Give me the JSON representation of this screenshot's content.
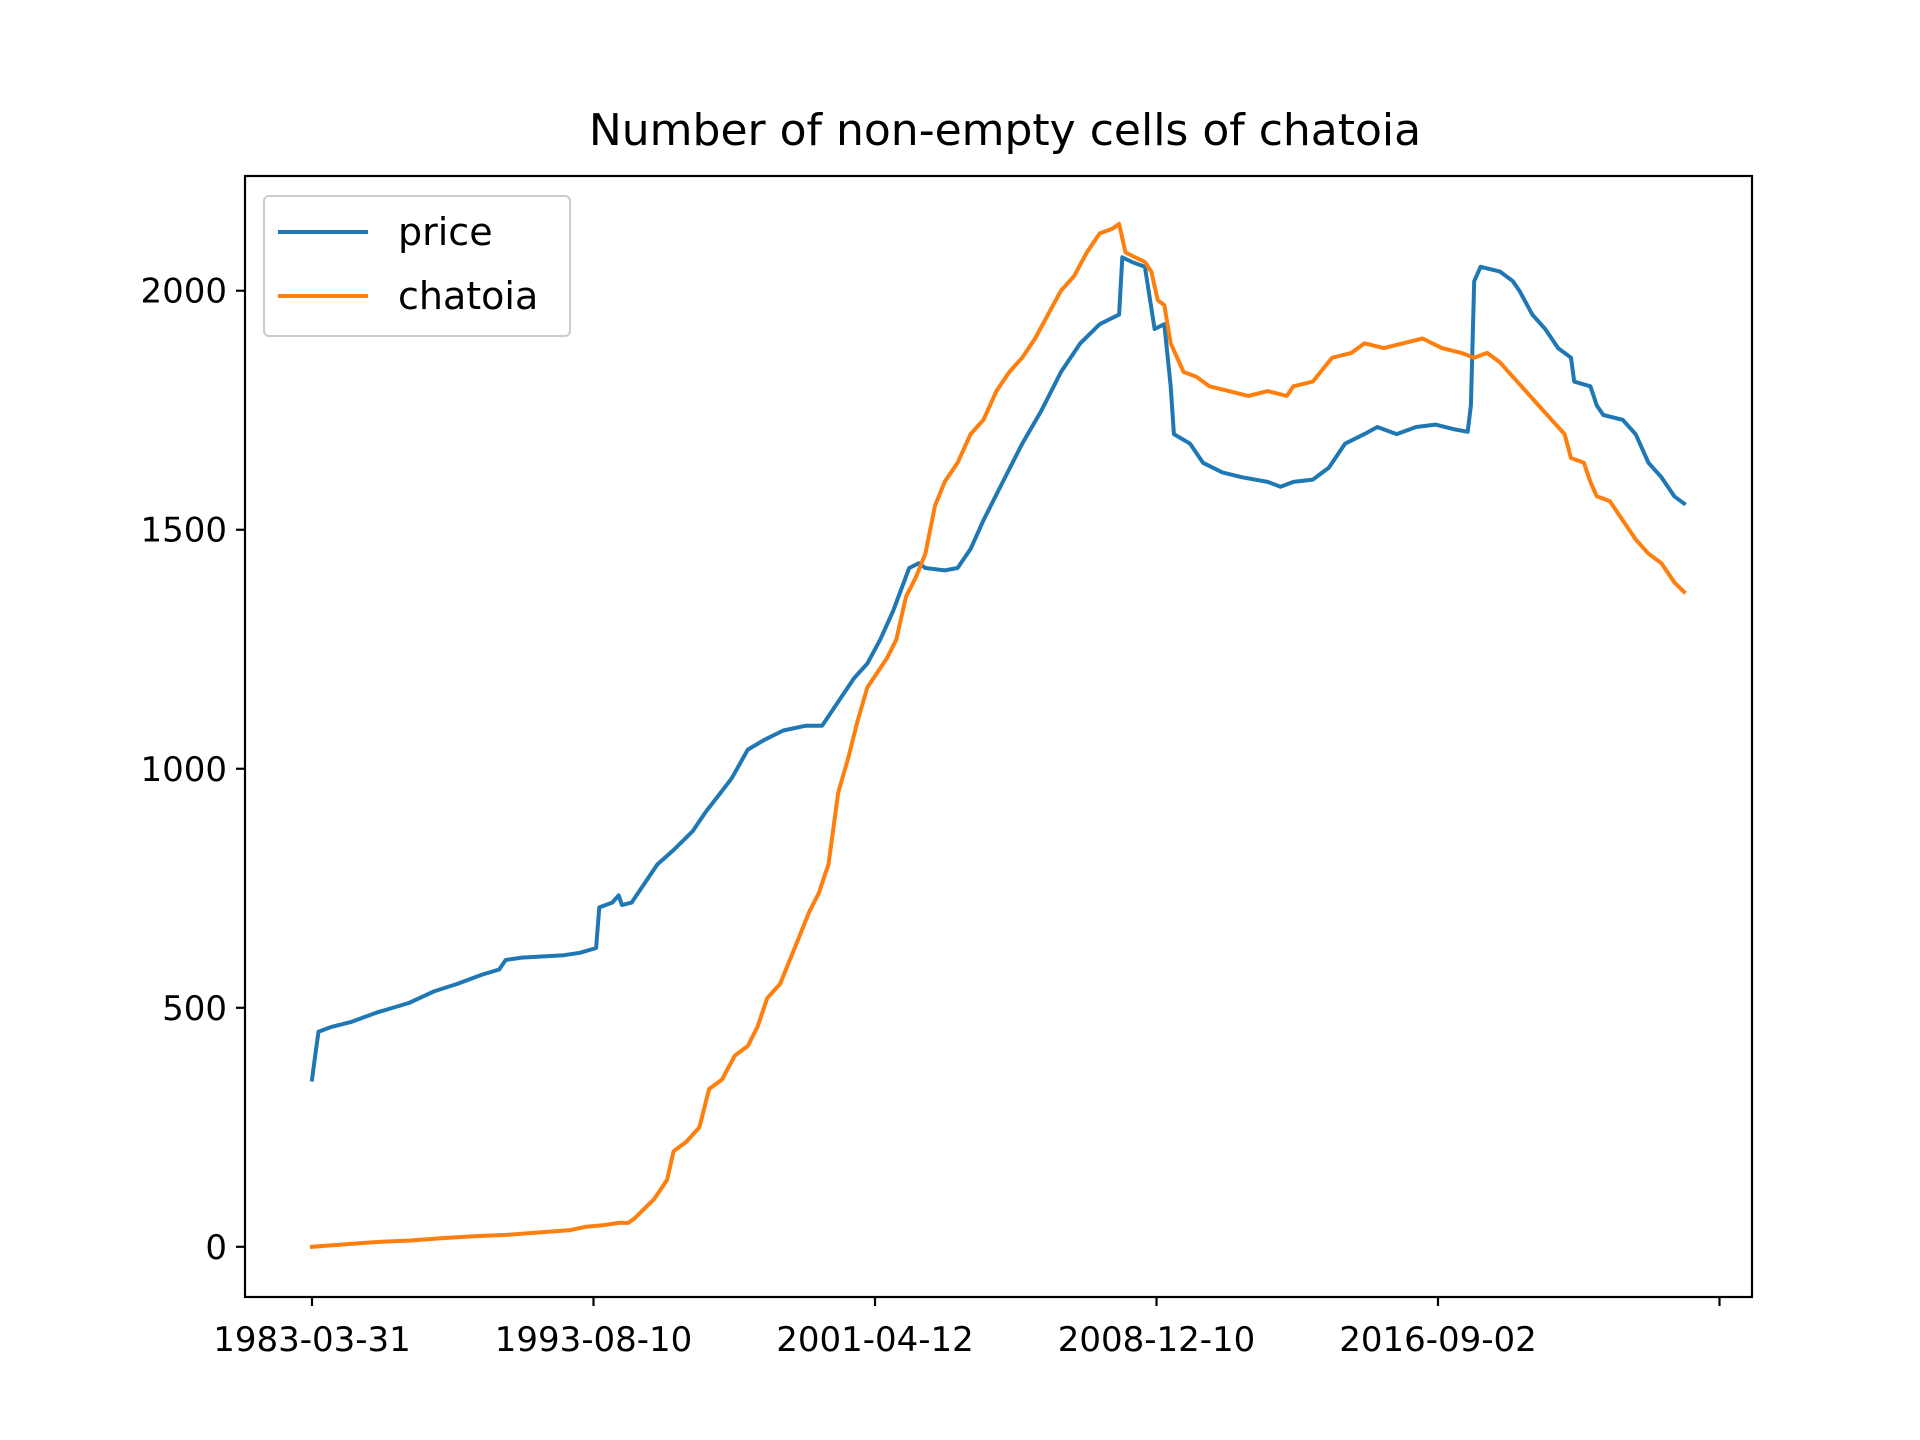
{
  "chart_data": {
    "type": "line",
    "title": "Number of non-empty cells of chatoia",
    "xlabel": "",
    "ylabel": "",
    "x_ticks": [
      "1983-03-31",
      "1993-08-10",
      "2001-04-12",
      "2008-12-10",
      "2016-09-02",
      ""
    ],
    "y_ticks": [
      0,
      500,
      1000,
      1500,
      2000
    ],
    "ylim": [
      -105,
      2240
    ],
    "grid": false,
    "legend_position": "top-left",
    "series": [
      {
        "name": "price",
        "color": "#1f77b4",
        "points": [
          [
            0,
            350
          ],
          [
            1,
            400
          ],
          [
            2,
            450
          ],
          [
            6,
            460
          ],
          [
            12,
            470
          ],
          [
            20,
            490
          ],
          [
            30,
            510
          ],
          [
            38,
            535
          ],
          [
            45,
            550
          ],
          [
            53,
            570
          ],
          [
            58,
            580
          ],
          [
            60,
            600
          ],
          [
            65,
            605
          ],
          [
            78,
            610
          ],
          [
            83,
            615
          ],
          [
            88,
            625
          ],
          [
            89,
            710
          ],
          [
            93,
            720
          ],
          [
            95,
            735
          ],
          [
            96,
            715
          ],
          [
            99,
            720
          ],
          [
            103,
            760
          ],
          [
            107,
            800
          ],
          [
            112,
            830
          ],
          [
            118,
            870
          ],
          [
            122,
            910
          ],
          [
            126,
            945
          ],
          [
            130,
            980
          ],
          [
            135,
            1040
          ],
          [
            140,
            1060
          ],
          [
            146,
            1080
          ],
          [
            153,
            1090
          ],
          [
            158,
            1090
          ],
          [
            163,
            1140
          ],
          [
            168,
            1190
          ],
          [
            172,
            1220
          ],
          [
            176,
            1270
          ],
          [
            180,
            1330
          ],
          [
            185,
            1420
          ],
          [
            188,
            1430
          ],
          [
            190,
            1420
          ],
          [
            196,
            1415
          ],
          [
            200,
            1420
          ],
          [
            204,
            1460
          ],
          [
            208,
            1520
          ],
          [
            214,
            1600
          ],
          [
            220,
            1680
          ],
          [
            226,
            1750
          ],
          [
            232,
            1830
          ],
          [
            238,
            1890
          ],
          [
            244,
            1930
          ],
          [
            250,
            1950
          ],
          [
            251,
            2070
          ],
          [
            254,
            2060
          ],
          [
            258,
            2050
          ],
          [
            261,
            1920
          ],
          [
            264,
            1930
          ],
          [
            266,
            1800
          ],
          [
            267,
            1700
          ],
          [
            272,
            1680
          ],
          [
            276,
            1640
          ],
          [
            282,
            1620
          ],
          [
            288,
            1610
          ],
          [
            296,
            1600
          ],
          [
            300,
            1590
          ],
          [
            304,
            1600
          ],
          [
            310,
            1605
          ],
          [
            315,
            1630
          ],
          [
            320,
            1680
          ],
          [
            326,
            1700
          ],
          [
            330,
            1715
          ],
          [
            336,
            1700
          ],
          [
            342,
            1715
          ],
          [
            348,
            1720
          ],
          [
            354,
            1710
          ],
          [
            358,
            1705
          ],
          [
            359,
            1760
          ],
          [
            360,
            2020
          ],
          [
            362,
            2050
          ],
          [
            368,
            2040
          ],
          [
            372,
            2020
          ],
          [
            374,
            2000
          ],
          [
            378,
            1950
          ],
          [
            382,
            1920
          ],
          [
            386,
            1880
          ],
          [
            390,
            1860
          ],
          [
            391,
            1810
          ],
          [
            396,
            1800
          ],
          [
            398,
            1760
          ],
          [
            400,
            1740
          ],
          [
            406,
            1730
          ],
          [
            410,
            1700
          ],
          [
            414,
            1640
          ],
          [
            418,
            1610
          ],
          [
            422,
            1570
          ],
          [
            425,
            1555
          ]
        ]
      },
      {
        "name": "chatoia",
        "color": "#ff7f0e",
        "points": [
          [
            0,
            0
          ],
          [
            10,
            5
          ],
          [
            20,
            10
          ],
          [
            30,
            13
          ],
          [
            40,
            18
          ],
          [
            50,
            22
          ],
          [
            60,
            25
          ],
          [
            70,
            30
          ],
          [
            80,
            35
          ],
          [
            85,
            42
          ],
          [
            90,
            45
          ],
          [
            95,
            50
          ],
          [
            98,
            50
          ],
          [
            100,
            60
          ],
          [
            103,
            80
          ],
          [
            106,
            100
          ],
          [
            110,
            140
          ],
          [
            112,
            200
          ],
          [
            116,
            220
          ],
          [
            120,
            250
          ],
          [
            123,
            330
          ],
          [
            127,
            350
          ],
          [
            131,
            400
          ],
          [
            135,
            420
          ],
          [
            138,
            460
          ],
          [
            141,
            520
          ],
          [
            145,
            550
          ],
          [
            148,
            600
          ],
          [
            151,
            650
          ],
          [
            154,
            700
          ],
          [
            157,
            740
          ],
          [
            160,
            800
          ],
          [
            163,
            950
          ],
          [
            166,
            1020
          ],
          [
            169,
            1100
          ],
          [
            172,
            1170
          ],
          [
            175,
            1200
          ],
          [
            178,
            1230
          ],
          [
            181,
            1270
          ],
          [
            184,
            1360
          ],
          [
            187,
            1400
          ],
          [
            190,
            1450
          ],
          [
            193,
            1550
          ],
          [
            196,
            1600
          ],
          [
            200,
            1640
          ],
          [
            204,
            1700
          ],
          [
            208,
            1730
          ],
          [
            212,
            1790
          ],
          [
            216,
            1830
          ],
          [
            220,
            1860
          ],
          [
            224,
            1900
          ],
          [
            228,
            1950
          ],
          [
            232,
            2000
          ],
          [
            236,
            2030
          ],
          [
            240,
            2080
          ],
          [
            244,
            2120
          ],
          [
            248,
            2130
          ],
          [
            250,
            2140
          ],
          [
            252,
            2080
          ],
          [
            255,
            2070
          ],
          [
            258,
            2060
          ],
          [
            260,
            2040
          ],
          [
            262,
            1980
          ],
          [
            264,
            1970
          ],
          [
            266,
            1890
          ],
          [
            270,
            1830
          ],
          [
            274,
            1820
          ],
          [
            278,
            1800
          ],
          [
            284,
            1790
          ],
          [
            290,
            1780
          ],
          [
            296,
            1790
          ],
          [
            302,
            1780
          ],
          [
            304,
            1800
          ],
          [
            310,
            1810
          ],
          [
            316,
            1860
          ],
          [
            322,
            1870
          ],
          [
            326,
            1890
          ],
          [
            332,
            1880
          ],
          [
            338,
            1890
          ],
          [
            344,
            1900
          ],
          [
            350,
            1880
          ],
          [
            356,
            1870
          ],
          [
            360,
            1860
          ],
          [
            364,
            1870
          ],
          [
            368,
            1850
          ],
          [
            372,
            1820
          ],
          [
            376,
            1790
          ],
          [
            380,
            1760
          ],
          [
            384,
            1730
          ],
          [
            388,
            1700
          ],
          [
            390,
            1650
          ],
          [
            394,
            1640
          ],
          [
            396,
            1600
          ],
          [
            398,
            1570
          ],
          [
            402,
            1560
          ],
          [
            406,
            1520
          ],
          [
            410,
            1480
          ],
          [
            414,
            1450
          ],
          [
            418,
            1430
          ],
          [
            422,
            1390
          ],
          [
            425,
            1370
          ]
        ]
      }
    ]
  }
}
